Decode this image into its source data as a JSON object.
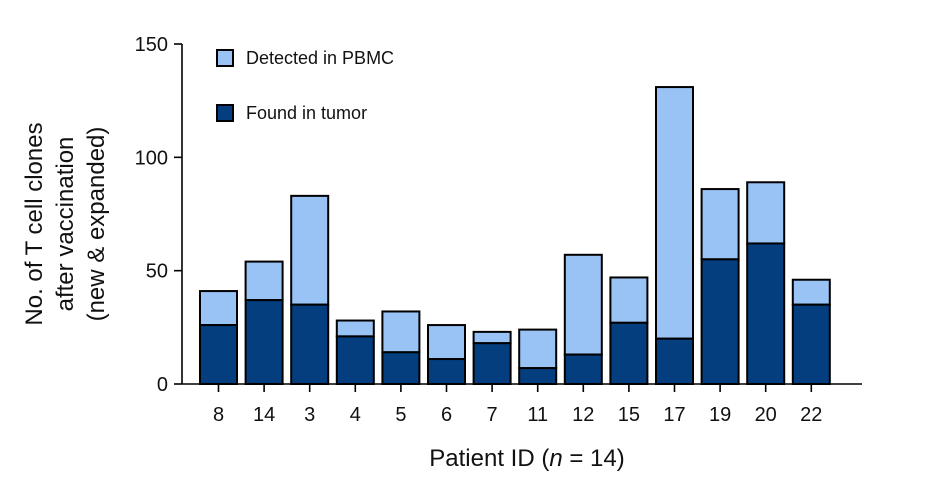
{
  "chart_data": {
    "type": "bar",
    "stacked": true,
    "categories": [
      "8",
      "14",
      "3",
      "4",
      "5",
      "6",
      "7",
      "11",
      "12",
      "15",
      "17",
      "19",
      "20",
      "22"
    ],
    "series": [
      {
        "name": "Found in tumor",
        "color": "#043e7f",
        "values": [
          26,
          37,
          35,
          21,
          14,
          11,
          18,
          7,
          13,
          27,
          20,
          55,
          62,
          35
        ]
      },
      {
        "name": "Detected in PBMC",
        "color": "#99c3f5",
        "values": [
          15,
          17,
          48,
          7,
          18,
          15,
          5,
          17,
          44,
          20,
          111,
          31,
          27,
          11
        ]
      }
    ],
    "totals": [
      41,
      54,
      83,
      28,
      32,
      26,
      23,
      24,
      57,
      47,
      131,
      86,
      89,
      46
    ],
    "xlabel_prefix": "Patient ID (",
    "xlabel_italic": "n",
    "xlabel_suffix": " = 14)",
    "ylabel_lines": [
      "No. of T cell clones",
      "after vaccination",
      "(new & expanded)"
    ],
    "yticks": [
      0,
      50,
      100,
      150
    ],
    "ylim": [
      0,
      150
    ],
    "legend_position": "top-left",
    "legend_order": [
      "Detected in PBMC",
      "Found in tumor"
    ],
    "grid": false
  }
}
